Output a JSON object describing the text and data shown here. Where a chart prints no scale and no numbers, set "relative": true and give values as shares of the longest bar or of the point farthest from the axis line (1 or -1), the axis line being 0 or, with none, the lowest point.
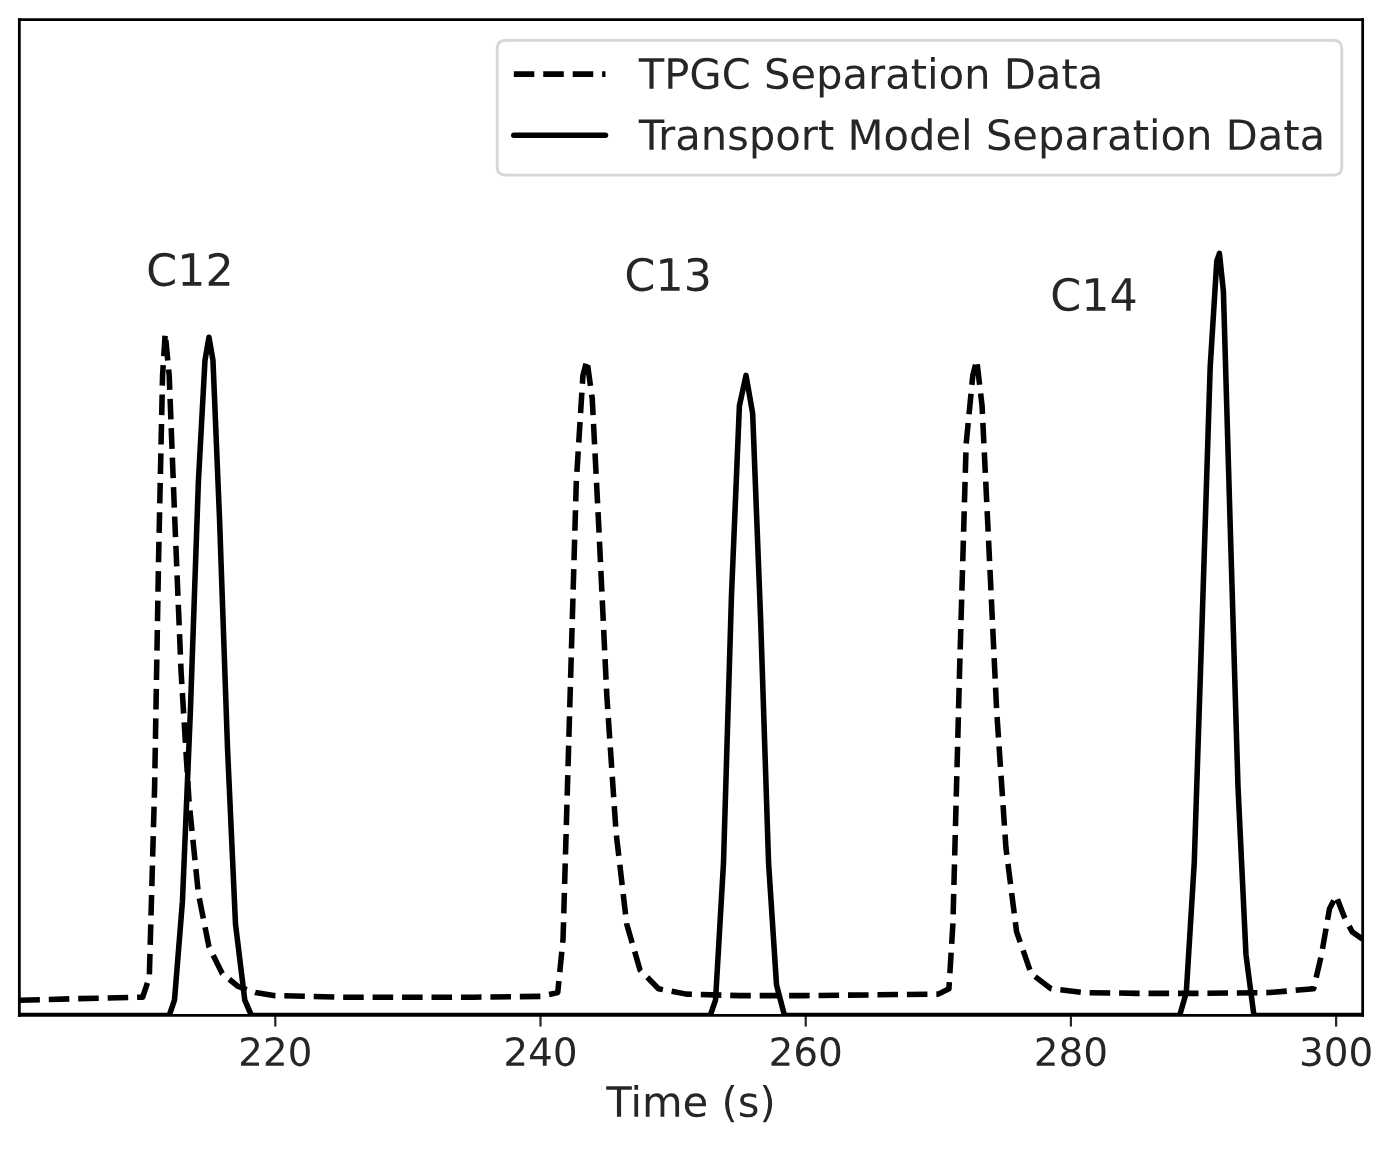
{
  "chart_data": {
    "type": "line",
    "relative": true,
    "xlabel": "Time (s)",
    "xlim": [
      200.7,
      302
    ],
    "xticks": [
      220,
      240,
      260,
      280,
      300
    ],
    "legend": "top right",
    "grid": false,
    "series": [
      {
        "name": "TPGC Separation Data",
        "color": "#000000",
        "line_style": "dashed",
        "x": [
          200.7,
          205,
          210,
          210.5,
          210.9,
          211.2,
          211.5,
          211.7,
          212.0,
          212.4,
          212.9,
          213.5,
          214.2,
          215.0,
          216.0,
          217.2,
          218.5,
          220,
          225,
          230,
          235,
          240,
          241.3,
          241.7,
          242.2,
          242.7,
          243.2,
          243.5,
          243.9,
          244.4,
          245.0,
          245.7,
          246.5,
          247.5,
          248.9,
          251,
          255,
          260,
          265,
          270,
          270.8,
          271.1,
          271.6,
          272.1,
          272.6,
          272.9,
          273.3,
          273.8,
          274.4,
          275.1,
          275.9,
          277.0,
          278.5,
          281,
          285,
          290,
          295,
          298.3,
          298.9,
          299.5,
          300.0,
          300.6,
          301.2,
          302
        ],
        "values": [
          0.02,
          0.022,
          0.024,
          0.05,
          0.3,
          0.6,
          0.84,
          0.895,
          0.84,
          0.66,
          0.45,
          0.28,
          0.16,
          0.09,
          0.055,
          0.038,
          0.03,
          0.026,
          0.024,
          0.024,
          0.024,
          0.025,
          0.03,
          0.1,
          0.4,
          0.7,
          0.84,
          0.86,
          0.81,
          0.64,
          0.42,
          0.24,
          0.12,
          0.06,
          0.035,
          0.028,
          0.026,
          0.026,
          0.027,
          0.028,
          0.035,
          0.12,
          0.45,
          0.75,
          0.84,
          0.86,
          0.8,
          0.62,
          0.4,
          0.22,
          0.11,
          0.055,
          0.035,
          0.03,
          0.029,
          0.029,
          0.03,
          0.035,
          0.08,
          0.14,
          0.157,
          0.13,
          0.11,
          0.1
        ]
      },
      {
        "name": "Transport Model Separation Data",
        "color": "#000000",
        "line_style": "solid",
        "x": [
          200.7,
          212.0,
          212.4,
          213.0,
          213.6,
          214.2,
          214.7,
          215.0,
          215.3,
          215.8,
          216.4,
          217.0,
          217.7,
          218.2,
          252.8,
          253.2,
          253.8,
          254.4,
          255.0,
          255.5,
          256.0,
          256.6,
          257.2,
          257.8,
          258.4,
          288.2,
          288.7,
          289.3,
          289.9,
          290.5,
          291.0,
          291.2,
          291.5,
          292.0,
          292.6,
          293.2,
          293.8,
          302
        ],
        "values": [
          0,
          0,
          0.02,
          0.15,
          0.4,
          0.7,
          0.86,
          0.89,
          0.86,
          0.65,
          0.35,
          0.12,
          0.02,
          0,
          0,
          0.02,
          0.2,
          0.55,
          0.8,
          0.84,
          0.79,
          0.52,
          0.2,
          0.04,
          0,
          0,
          0.03,
          0.2,
          0.52,
          0.85,
          0.99,
          1.0,
          0.95,
          0.65,
          0.3,
          0.08,
          0,
          0
        ]
      }
    ],
    "annotations": [
      "C12",
      "C13",
      "C14"
    ]
  }
}
